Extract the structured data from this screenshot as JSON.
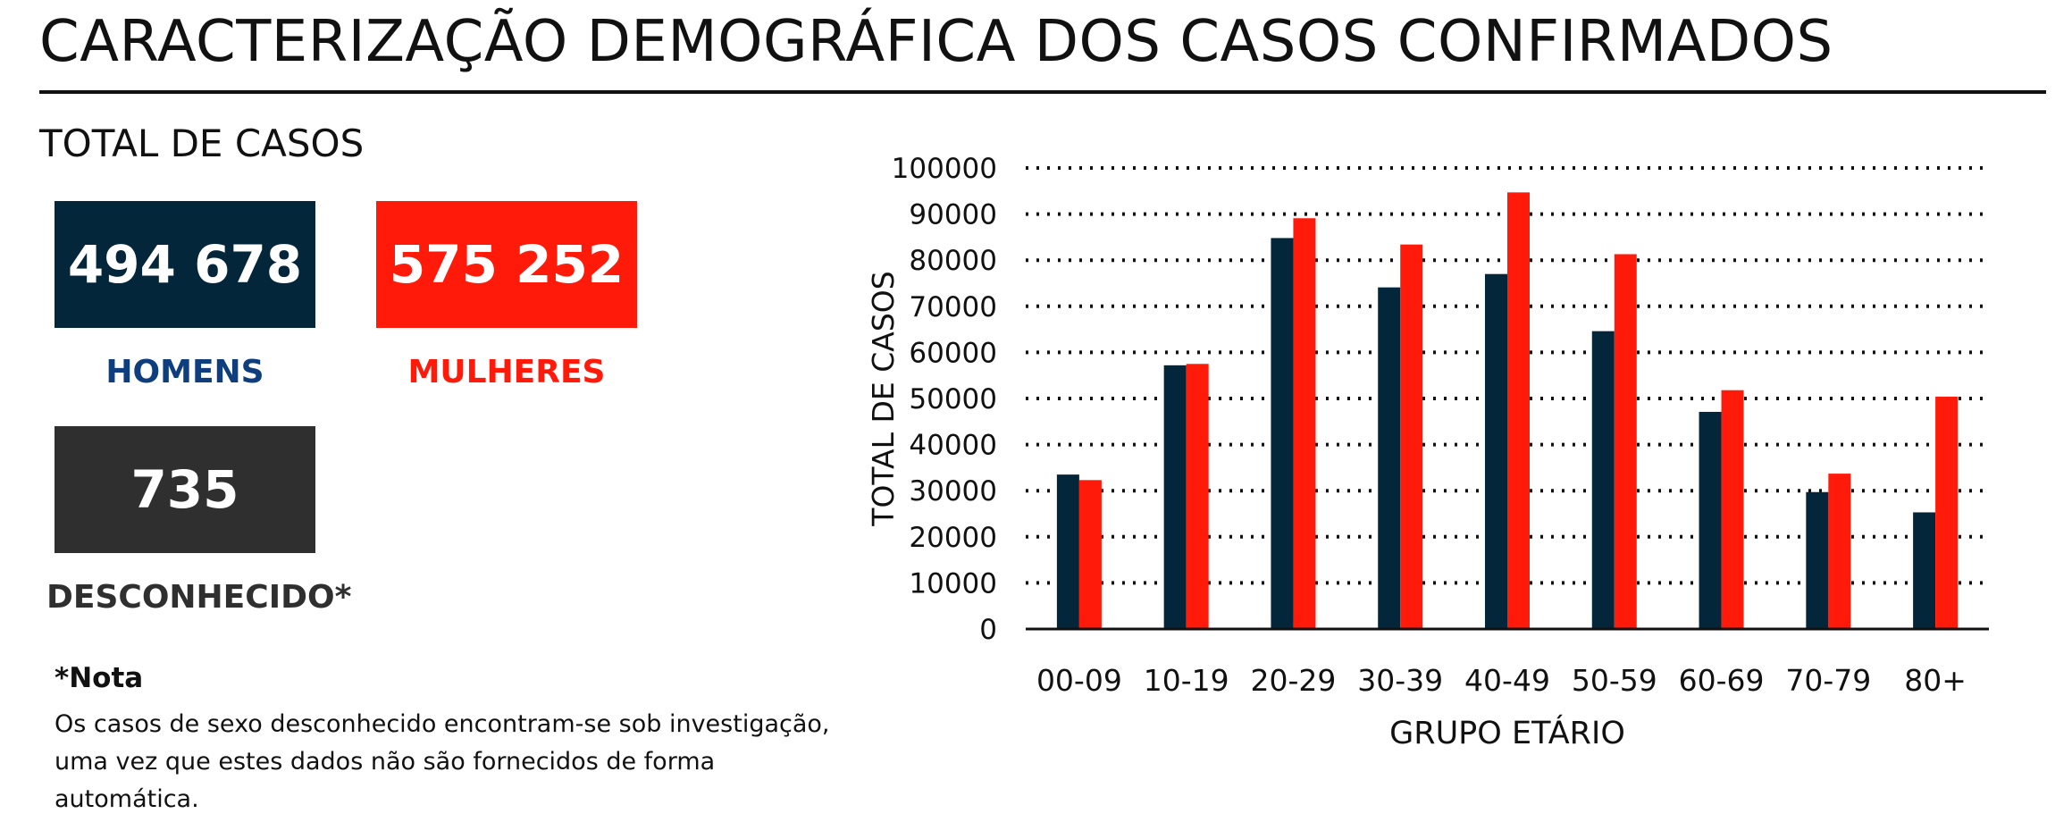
{
  "header": {
    "title": "CARACTERIZAÇÃO DEMOGRÁFICA DOS CASOS CONFIRMADOS"
  },
  "totals": {
    "heading": "TOTAL DE CASOS",
    "men": {
      "value": "494 678",
      "label": "HOMENS",
      "color": "#04263a",
      "label_color": "#0f3e7e"
    },
    "women": {
      "value": "575 252",
      "label": "MULHERES",
      "color": "#ff1a0a",
      "label_color": "#ff1a0a"
    },
    "unknown": {
      "value": "735",
      "label": "DESCONHECIDO*",
      "color": "#2f2f2f"
    }
  },
  "note": {
    "title": "*Nota",
    "text": "Os casos de sexo desconhecido encontram-se sob investigação, uma vez que estes dados não são fornecidos de forma automática."
  },
  "chart_data": {
    "type": "bar",
    "title": "",
    "xlabel": "GRUPO ETÁRIO",
    "ylabel": "TOTAL DE CASOS",
    "ylim": [
      0,
      100000
    ],
    "yticks": [
      0,
      10000,
      20000,
      30000,
      40000,
      50000,
      60000,
      70000,
      80000,
      90000,
      100000
    ],
    "grid": "horizontal dotted",
    "legend": "none",
    "categories": [
      "00-09",
      "10-19",
      "20-29",
      "30-39",
      "40-49",
      "50-59",
      "60-69",
      "70-79",
      "80+"
    ],
    "series": [
      {
        "color": "#04263a",
        "values": [
          33500,
          57200,
          84800,
          74100,
          77000,
          64600,
          47100,
          29700,
          25300
        ]
      },
      {
        "color": "#ff1a0a",
        "values": [
          32300,
          57500,
          89100,
          83400,
          94700,
          81300,
          51800,
          33700,
          50400
        ]
      }
    ]
  }
}
